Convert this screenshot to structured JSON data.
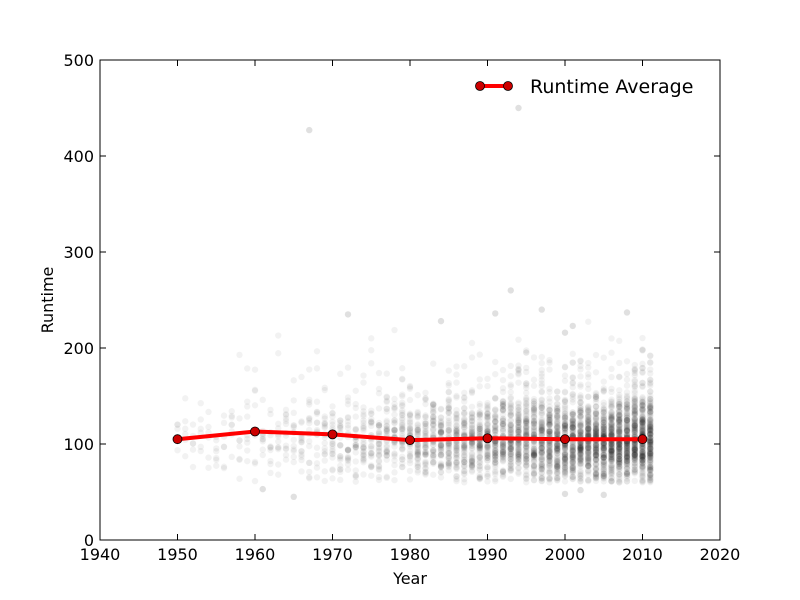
{
  "chart_data": {
    "type": "scatter",
    "xlabel": "Year",
    "ylabel": "Runtime",
    "xlim": [
      1940,
      2020
    ],
    "ylim": [
      0,
      500
    ],
    "x_ticks": [
      "1940",
      "1950",
      "1960",
      "1970",
      "1980",
      "1990",
      "2000",
      "2010",
      "2020"
    ],
    "y_ticks": [
      "0",
      "100",
      "200",
      "300",
      "400",
      "500"
    ],
    "grid": false,
    "legend_position": "top-right",
    "series": [
      {
        "name": "Runtime Average",
        "kind": "line",
        "color": "#ff0000",
        "marker_color": "#cc0000",
        "x": [
          1950,
          1960,
          1970,
          1980,
          1990,
          2000,
          2010
        ],
        "y": [
          105,
          113,
          110,
          104,
          106,
          105,
          105
        ]
      },
      {
        "kind": "scatter",
        "color": "#000000",
        "alpha": 0.05,
        "x_range": [
          1950,
          2011
        ],
        "typical_y_range": [
          70,
          140
        ],
        "outliers": [
          {
            "x": 1967,
            "y": 427
          },
          {
            "x": 1994,
            "y": 450
          },
          {
            "x": 1993,
            "y": 260
          },
          {
            "x": 1997,
            "y": 240
          },
          {
            "x": 1972,
            "y": 235
          },
          {
            "x": 1984,
            "y": 228
          },
          {
            "x": 2001,
            "y": 223
          },
          {
            "x": 2000,
            "y": 216
          },
          {
            "x": 2008,
            "y": 237
          },
          {
            "x": 1991,
            "y": 236
          },
          {
            "x": 1965,
            "y": 45
          },
          {
            "x": 1961,
            "y": 53
          },
          {
            "x": 2005,
            "y": 47
          },
          {
            "x": 2000,
            "y": 48
          },
          {
            "x": 2002,
            "y": 52
          }
        ]
      }
    ]
  }
}
